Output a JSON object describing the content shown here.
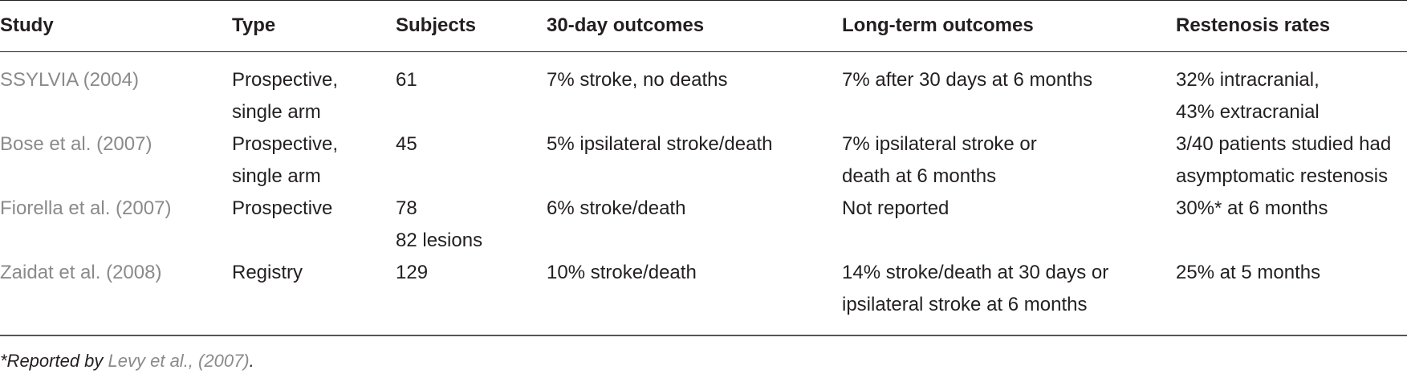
{
  "table": {
    "headers": [
      "Study",
      "Type",
      "Subjects",
      "30-day outcomes",
      "Long-term outcomes",
      "Restenosis rates"
    ],
    "rows": [
      {
        "study": "SSYLVIA (2004)",
        "type": [
          "Prospective,",
          "single arm"
        ],
        "subjects": [
          "61"
        ],
        "outcomes_30day": [
          "7% stroke, no deaths"
        ],
        "long_term": [
          "7% after 30 days at 6 months"
        ],
        "restenosis": [
          "32% intracranial,",
          "43% extracranial"
        ]
      },
      {
        "study": "Bose et al. (2007)",
        "type": [
          "Prospective,",
          "single arm"
        ],
        "subjects": [
          "45"
        ],
        "outcomes_30day": [
          "5% ipsilateral stroke/death"
        ],
        "long_term": [
          "7% ipsilateral stroke or",
          "death at 6 months"
        ],
        "restenosis": [
          "3/40 patients studied had",
          "asymptomatic restenosis"
        ]
      },
      {
        "study": "Fiorella et al. (2007)",
        "type": [
          "Prospective"
        ],
        "subjects": [
          "78",
          "82 lesions"
        ],
        "outcomes_30day": [
          "6% stroke/death"
        ],
        "long_term": [
          "Not reported"
        ],
        "restenosis": [
          "30%* at 6 months"
        ]
      },
      {
        "study": "Zaidat et al. (2008)",
        "type": [
          "Registry"
        ],
        "subjects": [
          "129"
        ],
        "outcomes_30day": [
          "10% stroke/death"
        ],
        "long_term": [
          "14% stroke/death at 30 days or",
          "ipsilateral stroke at 6 months"
        ],
        "restenosis": [
          "25% at 5 months"
        ]
      }
    ]
  },
  "footnote": {
    "prefix": "*Reported by ",
    "reference": "Levy et al., (2007)",
    "suffix": "."
  }
}
